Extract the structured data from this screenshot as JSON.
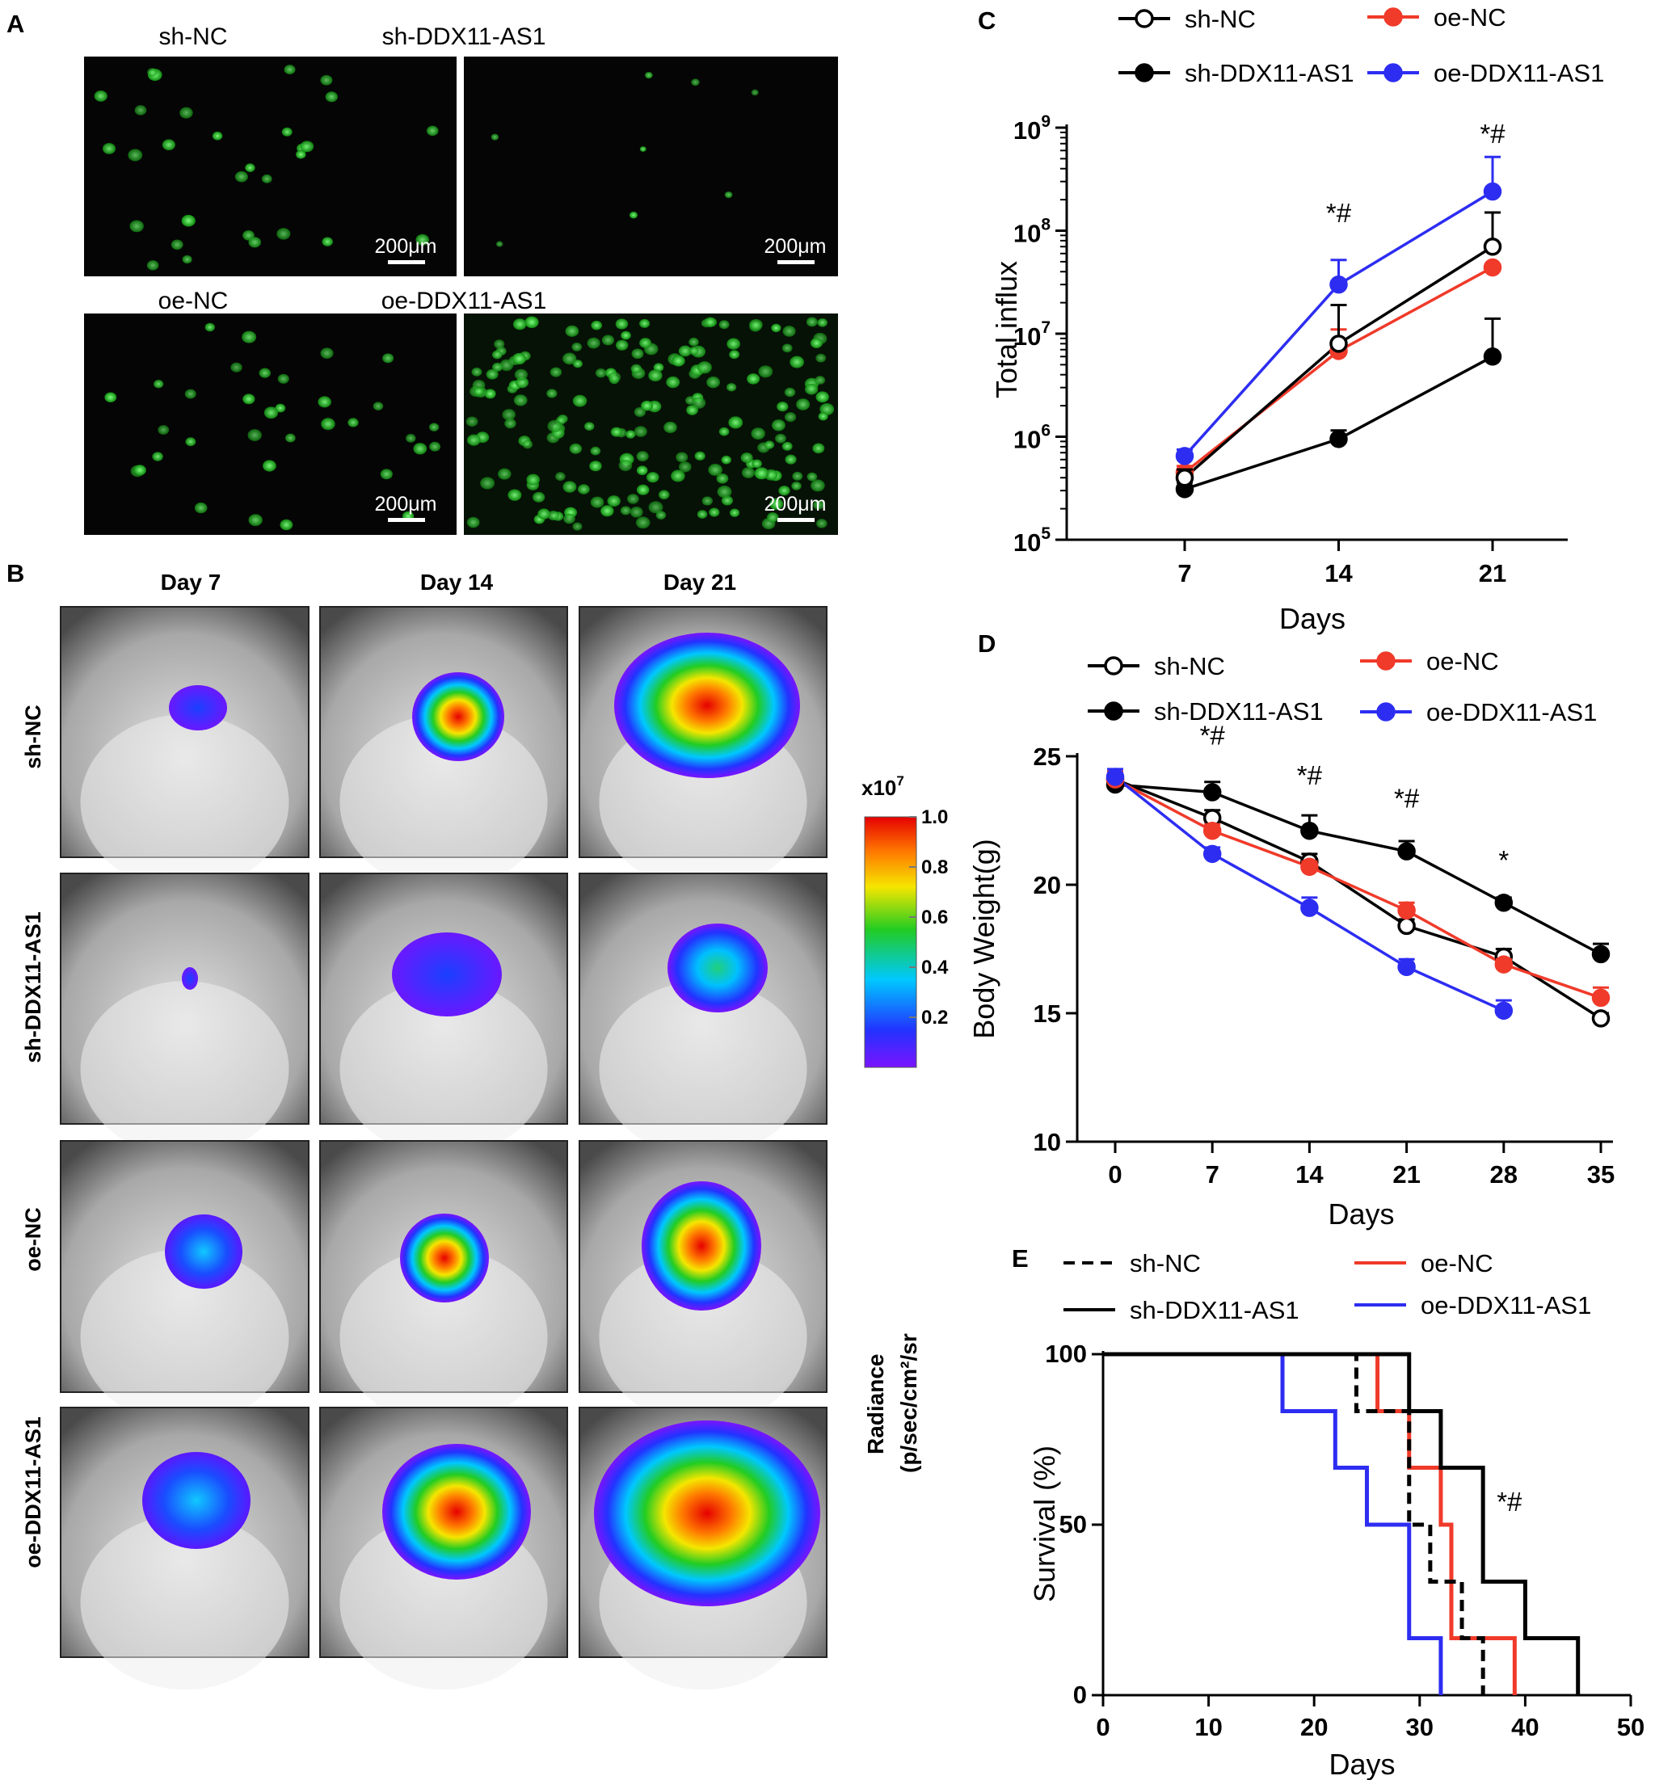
{
  "panels": {
    "A": "A",
    "B": "B",
    "C": "C",
    "D": "D",
    "E": "E"
  },
  "panel_a": {
    "titles": [
      "sh-NC",
      "sh-DDX11-AS1",
      "oe-NC",
      "oe-DDX11-AS1"
    ],
    "scale_label": "200μm"
  },
  "panel_b": {
    "days": [
      "Day 7",
      "Day 14",
      "Day 21"
    ],
    "groups": [
      "sh-NC",
      "sh-DDX11-AS1",
      "oe-NC",
      "oe-DDX11-AS1"
    ],
    "colorbar": {
      "exponent": "x10",
      "exponent_power": "7",
      "ticks": [
        "1.0",
        "0.8",
        "0.6",
        "0.4",
        "0.2"
      ],
      "unit_line1": "Radiance",
      "unit_line2": "(p/sec/cm²/sr"
    }
  },
  "colors": {
    "sh-NC": "#000000",
    "sh-DDX11-AS1": "#000000",
    "oe-NC": "#f03a2a",
    "oe-DDX11-AS1": "#2d2df2"
  },
  "chart_data": [
    {
      "id": "C",
      "type": "line",
      "yscale": "log",
      "xlabel": "Days",
      "ylabel": "Total influx",
      "x": [
        7,
        14,
        21
      ],
      "xtick_labels": [
        "7",
        "14",
        "21"
      ],
      "ytick_base": "10",
      "ytick_exponents": [
        "5",
        "6",
        "7",
        "8",
        "9"
      ],
      "ylim": [
        100000,
        1000000000
      ],
      "legend": [
        "sh-NC",
        "oe-NC",
        "sh-DDX11-AS1",
        "oe-DDX11-AS1"
      ],
      "annotations": [
        {
          "x": 14,
          "text": "*#"
        },
        {
          "x": 21,
          "text": "*#"
        }
      ],
      "series": [
        {
          "name": "sh-NC",
          "values": [
            400000,
            8000000,
            70000000
          ],
          "err": [
            480000,
            19000000,
            150000000
          ],
          "marker": "open"
        },
        {
          "name": "sh-DDX11-AS1",
          "values": [
            310000,
            950000,
            6000000
          ],
          "err": [
            360000,
            1150000,
            14000000
          ],
          "marker": "filled"
        },
        {
          "name": "oe-NC",
          "values": [
            450000,
            6800000,
            44000000
          ],
          "err": [
            520000,
            11000000,
            44000000
          ],
          "marker": "filled"
        },
        {
          "name": "oe-DDX11-AS1",
          "values": [
            650000,
            30000000,
            240000000
          ],
          "err": [
            750000,
            52000000,
            520000000
          ],
          "marker": "filled"
        }
      ]
    },
    {
      "id": "D",
      "type": "line",
      "xlabel": "Days",
      "ylabel": "Body Weight(g)",
      "x": [
        0,
        7,
        14,
        21,
        28,
        35
      ],
      "xtick_labels": [
        "0",
        "7",
        "14",
        "21",
        "28",
        "35"
      ],
      "ytick_labels": [
        "10",
        "15",
        "20",
        "25"
      ],
      "ylim": [
        10,
        25
      ],
      "legend": [
        "sh-NC",
        "oe-NC",
        "sh-DDX11-AS1",
        "oe-DDX11-AS1"
      ],
      "annotations": [
        {
          "x": 7,
          "y": 25.45,
          "text": "*#"
        },
        {
          "x": 14,
          "y": 23.9,
          "text": "*#"
        },
        {
          "x": 21,
          "y": 23.0,
          "text": "*#"
        },
        {
          "x": 28,
          "y": 20.6,
          "text": "*"
        }
      ],
      "series": [
        {
          "name": "sh-NC",
          "values": [
            24.1,
            22.6,
            20.9,
            18.4,
            17.2,
            14.8
          ],
          "err": [
            0.3,
            0.3,
            0.3,
            0.25,
            0.3,
            0.2
          ],
          "marker": "open"
        },
        {
          "name": "sh-DDX11-AS1",
          "values": [
            23.9,
            23.6,
            22.1,
            21.3,
            19.3,
            17.3
          ],
          "err": [
            0.3,
            0.4,
            0.6,
            0.4,
            0.2,
            0.4
          ],
          "marker": "filled"
        },
        {
          "name": "oe-NC",
          "values": [
            24.1,
            22.1,
            20.7,
            19.0,
            16.9,
            15.6
          ],
          "err": [
            0.3,
            0.25,
            0.2,
            0.3,
            0.2,
            0.4
          ],
          "marker": "filled"
        },
        {
          "name": "oe-DDX11-AS1",
          "values": [
            24.2,
            21.2,
            19.1,
            16.8,
            15.1
          ],
          "x": [
            0,
            7,
            14,
            21,
            28
          ],
          "err": [
            0.3,
            0.25,
            0.4,
            0.3,
            0.4
          ],
          "marker": "filled"
        }
      ]
    },
    {
      "id": "E",
      "type": "step",
      "xlabel": "Days",
      "ylabel": "Survival (%)",
      "xlim": [
        0,
        50
      ],
      "ylim": [
        0,
        100
      ],
      "xtick_labels": [
        "0",
        "10",
        "20",
        "30",
        "40",
        "50"
      ],
      "ytick_labels": [
        "0",
        "50",
        "100"
      ],
      "legend": [
        "sh-NC",
        "oe-NC",
        "sh-DDX11-AS1",
        "oe-DDX11-AS1"
      ],
      "annotations": [
        {
          "x": 38.5,
          "y": 54,
          "text": "*#"
        }
      ],
      "series": [
        {
          "name": "sh-NC",
          "dash": true,
          "times": [
            0,
            24,
            29,
            31,
            34,
            36
          ],
          "surv": [
            100,
            83.3,
            50,
            33.3,
            16.7,
            0
          ]
        },
        {
          "name": "sh-DDX11-AS1",
          "dash": false,
          "times": [
            0,
            29,
            32,
            36,
            40,
            45
          ],
          "surv": [
            100,
            83.3,
            66.7,
            33.3,
            16.7,
            0
          ]
        },
        {
          "name": "oe-NC",
          "dash": false,
          "times": [
            0,
            26,
            29,
            32,
            33,
            39
          ],
          "surv": [
            100,
            83.3,
            66.7,
            50,
            16.7,
            0
          ]
        },
        {
          "name": "oe-DDX11-AS1",
          "dash": false,
          "times": [
            0,
            17,
            22,
            25,
            29,
            32
          ],
          "surv": [
            100,
            83.3,
            66.7,
            50,
            16.7,
            0
          ]
        }
      ]
    }
  ]
}
